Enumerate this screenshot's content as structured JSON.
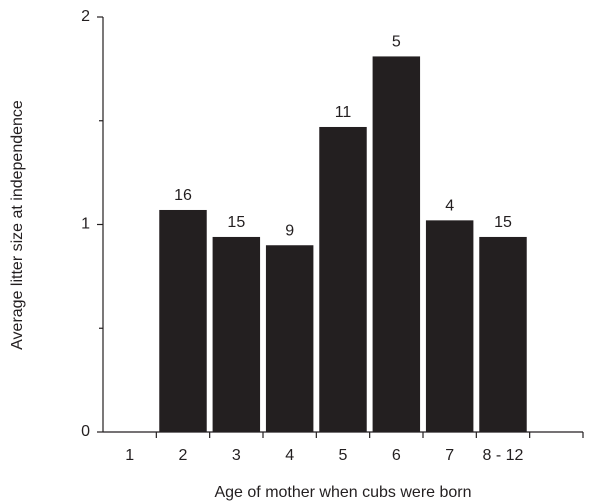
{
  "chart_data": {
    "type": "bar",
    "x_label": "Age of mother when cubs were born",
    "y_label": "Average litter size at independence",
    "categories": [
      "1",
      "2",
      "3",
      "4",
      "5",
      "6",
      "7",
      "8 - 12",
      null
    ],
    "values": [
      null,
      1.07,
      0.94,
      0.9,
      1.47,
      1.81,
      1.02,
      0.94,
      null
    ],
    "sample_sizes": [
      null,
      16,
      15,
      9,
      11,
      5,
      4,
      15,
      null
    ],
    "color": "#231f20",
    "ylim": [
      0,
      2
    ],
    "yticks": [
      0,
      1,
      2
    ],
    "minor_yticks": [
      0.5,
      1.5
    ]
  }
}
